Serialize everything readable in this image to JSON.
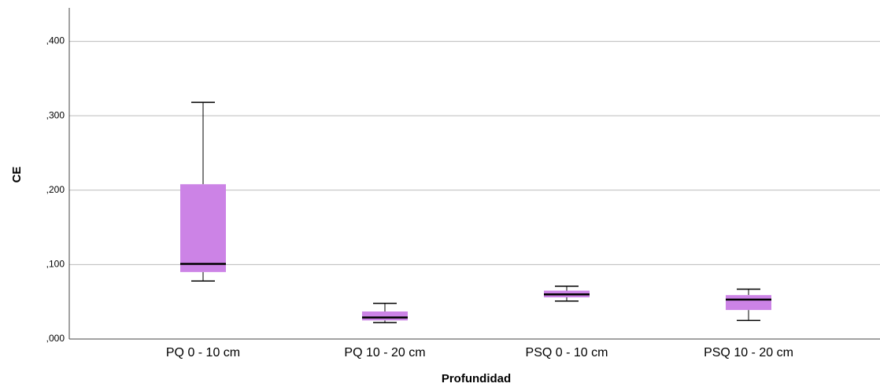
{
  "chart_data": {
    "type": "box",
    "x_label": "Profundidad",
    "y_label": "CE",
    "categories": [
      "PQ 0 - 10 cm",
      "PQ 10 - 20 cm",
      "PSQ 0 - 10 cm",
      "PSQ 10 - 20 cm"
    ],
    "min": [
      0.078,
      0.022,
      0.051,
      0.025
    ],
    "q1": [
      0.09,
      0.025,
      0.056,
      0.039
    ],
    "median": [
      0.101,
      0.029,
      0.06,
      0.053
    ],
    "q3": [
      0.208,
      0.037,
      0.065,
      0.059
    ],
    "max": [
      0.318,
      0.048,
      0.071,
      0.067
    ],
    "color": "#cc83e6",
    "ylim": [
      0,
      0.445
    ],
    "yticks": [
      {
        "value": 0,
        "label": ",000"
      },
      {
        "value": 0.1,
        "label": ",100"
      },
      {
        "value": 0.2,
        "label": ",200"
      },
      {
        "value": 0.3,
        "label": ",300"
      },
      {
        "value": 0.4,
        "label": ",400"
      }
    ],
    "grid": true
  }
}
